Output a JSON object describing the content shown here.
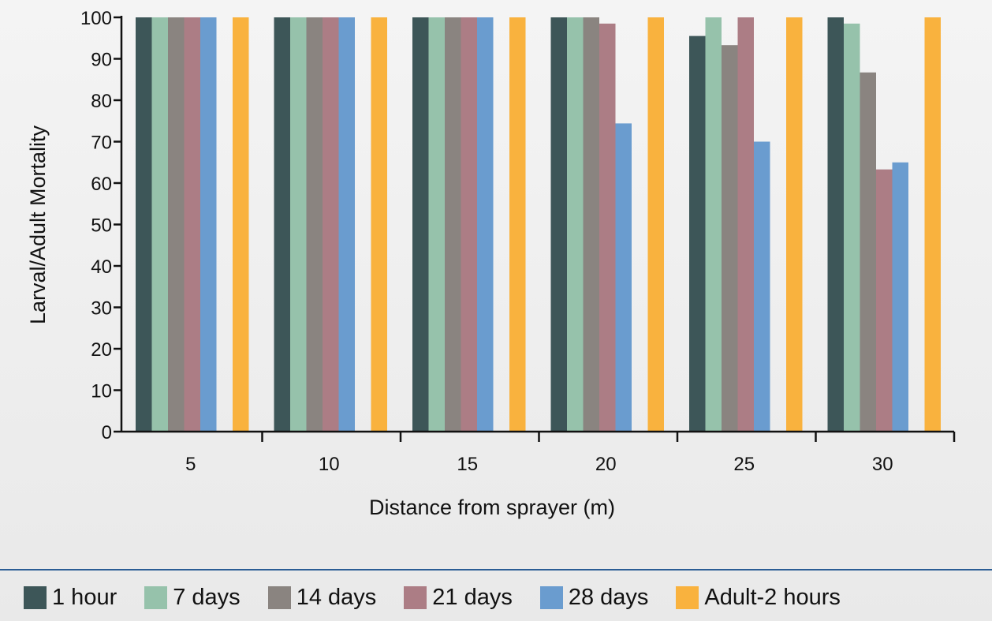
{
  "chart_data": {
    "type": "bar",
    "title": "",
    "xlabel": "Distance from sprayer (m)",
    "ylabel": "Larval/Adult Mortality",
    "ylim": [
      0,
      100
    ],
    "yticks": [
      "0",
      "10",
      "20",
      "30",
      "40",
      "50",
      "60",
      "70",
      "80",
      "90",
      "100"
    ],
    "categories": [
      "5",
      "10",
      "15",
      "20",
      "25",
      "30"
    ],
    "legend_position": "bottom",
    "grid": false,
    "series": [
      {
        "name": "1 hour",
        "color": "#3d5658",
        "values": [
          100,
          100,
          100,
          100,
          95.5,
          100
        ]
      },
      {
        "name": "7 days",
        "color": "#96c2ab",
        "values": [
          100,
          100,
          100,
          100,
          100,
          98.5
        ]
      },
      {
        "name": "14 days",
        "color": "#8a8480",
        "values": [
          100,
          100,
          100,
          100,
          93.3,
          86.7
        ]
      },
      {
        "name": "21 days",
        "color": "#ac7d85",
        "values": [
          100,
          100,
          100,
          98.5,
          100,
          63.3
        ]
      },
      {
        "name": "28 days",
        "color": "#6a9ccf",
        "values": [
          100,
          100,
          100,
          74.4,
          70,
          65
        ]
      },
      {
        "name": "Adult-2 hours",
        "color": "#f9b23e",
        "values": [
          100,
          100,
          100,
          100,
          100,
          100
        ]
      }
    ]
  }
}
